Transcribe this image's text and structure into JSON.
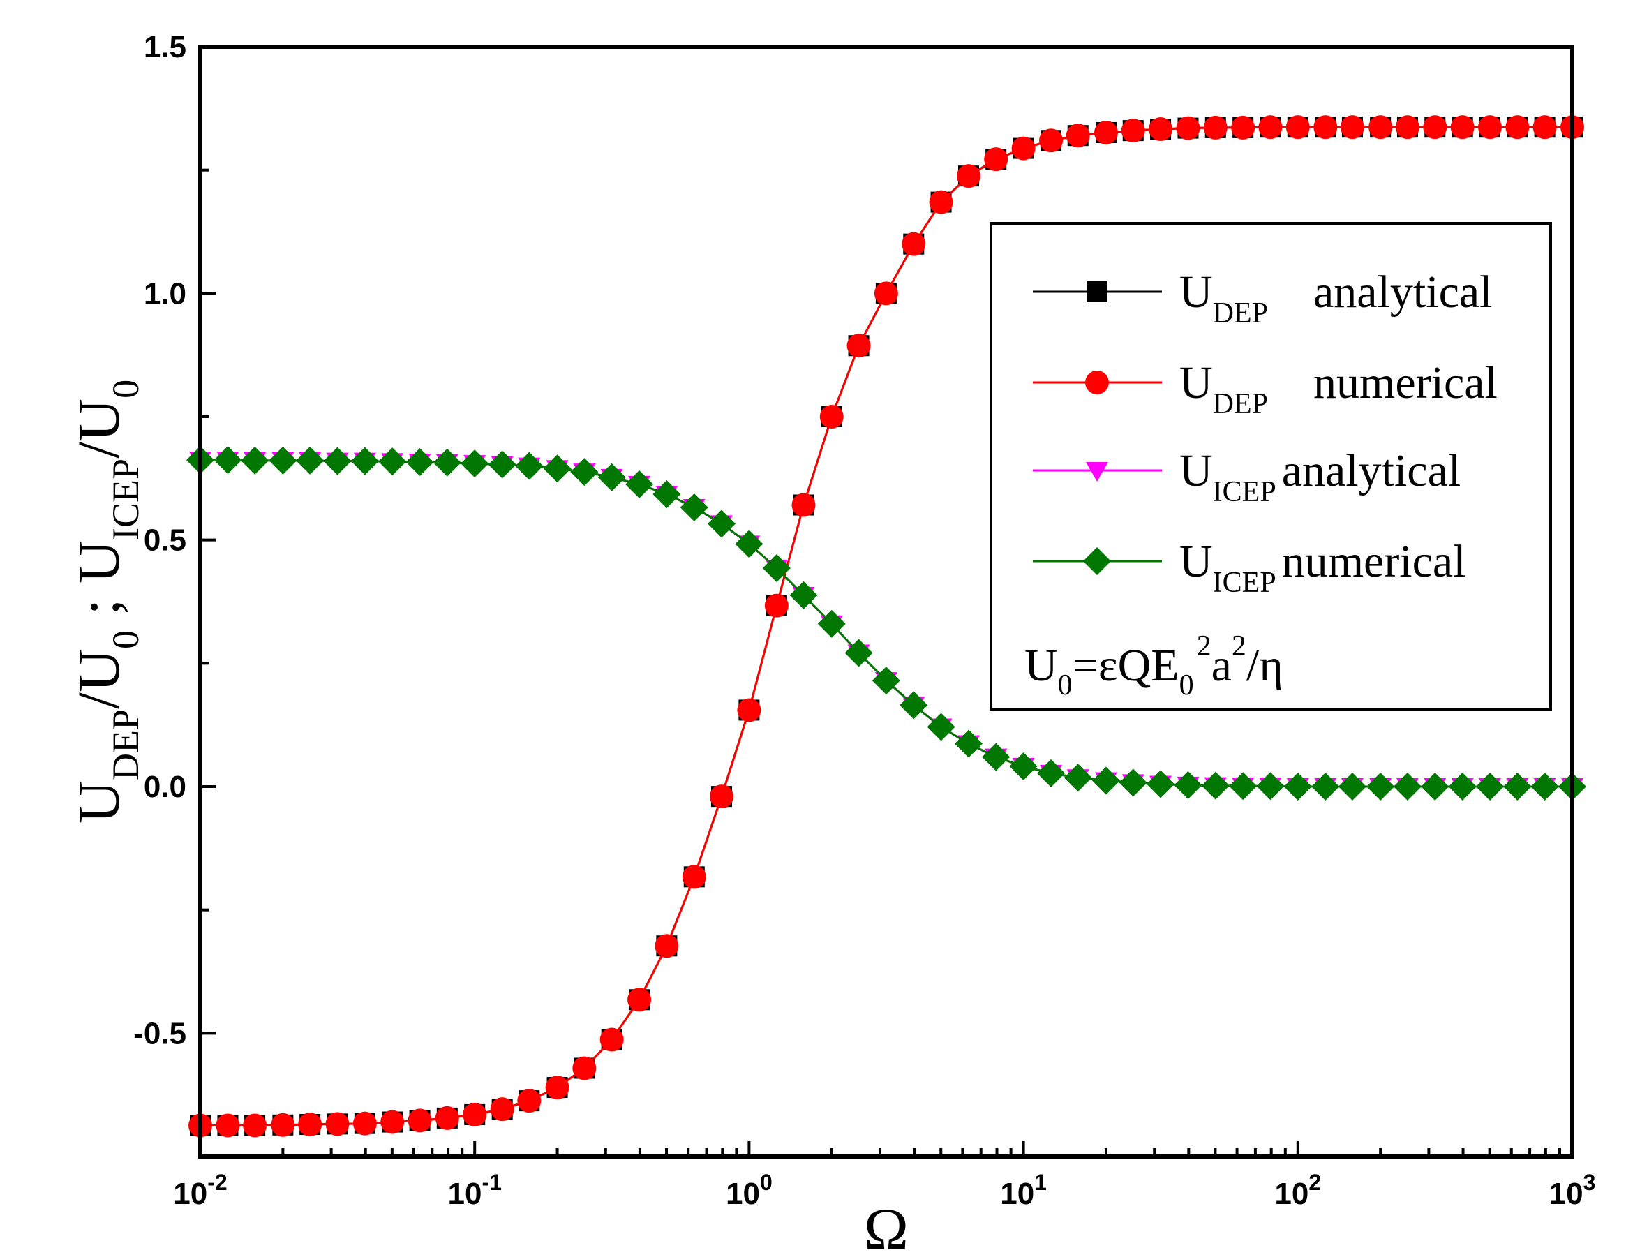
{
  "chart_data": {
    "type": "line",
    "title": "",
    "xlabel": "Ω",
    "ylabel": {
      "dep_main": "U",
      "dep_sub": "DEP",
      "dep_div": "/U",
      "dep_div_sub": "0",
      "sep": " ; ",
      "icep_main": "U",
      "icep_sub": "ICEP",
      "icep_div": "/U",
      "icep_div_sub": "0"
    },
    "xscale": "log",
    "xlim": [
      0.01,
      1000
    ],
    "ylim": [
      -0.75,
      1.5
    ],
    "x_ticks": [
      {
        "value": 0.01,
        "base": "10",
        "exp": "-2"
      },
      {
        "value": 0.1,
        "base": "10",
        "exp": "-1"
      },
      {
        "value": 1,
        "base": "10",
        "exp": "0"
      },
      {
        "value": 10,
        "base": "10",
        "exp": "1"
      },
      {
        "value": 100,
        "base": "10",
        "exp": "2"
      },
      {
        "value": 1000,
        "base": "10",
        "exp": "3"
      }
    ],
    "y_ticks": [
      {
        "value": -0.5,
        "label": "-0.5"
      },
      {
        "value": 0.0,
        "label": "0.0"
      },
      {
        "value": 0.5,
        "label": "0.5"
      },
      {
        "value": 1.0,
        "label": "1.0"
      },
      {
        "value": 1.5,
        "label": "1.5"
      }
    ],
    "x": [
      0.01,
      0.0126,
      0.0158,
      0.02,
      0.0251,
      0.0316,
      0.0398,
      0.0501,
      0.0631,
      0.0794,
      0.1,
      0.126,
      0.158,
      0.2,
      0.251,
      0.316,
      0.398,
      0.501,
      0.631,
      0.794,
      1.0,
      1.26,
      1.58,
      2.0,
      2.51,
      3.16,
      3.98,
      5.01,
      6.31,
      7.94,
      10.0,
      12.6,
      15.8,
      20.0,
      25.1,
      31.6,
      39.8,
      50.1,
      63.1,
      79.4,
      100,
      126,
      158,
      200,
      251,
      316,
      398,
      501,
      631,
      794,
      1000
    ],
    "series": [
      {
        "name": "U_DEP analytical",
        "color": "#000000",
        "marker": "square",
        "values": [
          -0.687,
          -0.687,
          -0.687,
          -0.686,
          -0.685,
          -0.684,
          -0.683,
          -0.68,
          -0.677,
          -0.672,
          -0.665,
          -0.654,
          -0.637,
          -0.61,
          -0.571,
          -0.513,
          -0.432,
          -0.323,
          -0.183,
          -0.02,
          0.155,
          0.367,
          0.571,
          0.75,
          0.894,
          1.0,
          1.1,
          1.185,
          1.238,
          1.272,
          1.294,
          1.31,
          1.32,
          1.326,
          1.33,
          1.333,
          1.335,
          1.336,
          1.336,
          1.337,
          1.337,
          1.337,
          1.337,
          1.337,
          1.337,
          1.337,
          1.337,
          1.337,
          1.337,
          1.337,
          1.337
        ]
      },
      {
        "name": "U_DEP numerical",
        "color": "#ff0000",
        "marker": "circle",
        "values": [
          -0.687,
          -0.687,
          -0.687,
          -0.686,
          -0.685,
          -0.684,
          -0.683,
          -0.68,
          -0.677,
          -0.672,
          -0.665,
          -0.654,
          -0.637,
          -0.61,
          -0.571,
          -0.513,
          -0.432,
          -0.323,
          -0.183,
          -0.02,
          0.155,
          0.367,
          0.571,
          0.75,
          0.894,
          1.0,
          1.1,
          1.185,
          1.238,
          1.272,
          1.294,
          1.31,
          1.32,
          1.326,
          1.33,
          1.333,
          1.335,
          1.336,
          1.336,
          1.337,
          1.337,
          1.337,
          1.337,
          1.337,
          1.337,
          1.337,
          1.337,
          1.337,
          1.337,
          1.337,
          1.337
        ]
      },
      {
        "name": "U_ICEP analytical",
        "color": "#ff00ff",
        "marker": "triangle-down",
        "values": [
          0.662,
          0.662,
          0.661,
          0.661,
          0.661,
          0.66,
          0.66,
          0.659,
          0.658,
          0.657,
          0.655,
          0.653,
          0.65,
          0.645,
          0.638,
          0.627,
          0.613,
          0.593,
          0.566,
          0.533,
          0.492,
          0.443,
          0.388,
          0.33,
          0.271,
          0.215,
          0.165,
          0.121,
          0.087,
          0.06,
          0.041,
          0.027,
          0.018,
          0.012,
          0.008,
          0.005,
          0.003,
          0.002,
          0.001,
          0.001,
          0.0,
          0.0,
          0.0,
          0.0,
          0.0,
          0.0,
          0.0,
          0.0,
          0.0,
          0.0,
          0.0
        ]
      },
      {
        "name": "U_ICEP numerical",
        "color": "#007700",
        "marker": "diamond",
        "values": [
          0.662,
          0.662,
          0.661,
          0.661,
          0.661,
          0.66,
          0.66,
          0.659,
          0.658,
          0.657,
          0.655,
          0.653,
          0.65,
          0.645,
          0.638,
          0.627,
          0.613,
          0.593,
          0.566,
          0.533,
          0.492,
          0.443,
          0.388,
          0.33,
          0.271,
          0.215,
          0.165,
          0.121,
          0.087,
          0.06,
          0.041,
          0.027,
          0.018,
          0.012,
          0.008,
          0.005,
          0.003,
          0.002,
          0.001,
          0.001,
          0.0,
          0.0,
          0.0,
          0.0,
          0.0,
          0.0,
          0.0,
          0.0,
          0.0,
          0.0,
          0.0
        ]
      }
    ],
    "legend": {
      "position": "right",
      "entries": [
        {
          "main": "U",
          "sub": "DEP",
          "text": "analytical"
        },
        {
          "main": "U",
          "sub": "DEP",
          "text": "numerical"
        },
        {
          "main": "U",
          "sub": "ICEP",
          "text": "analytical"
        },
        {
          "main": "U",
          "sub": "ICEP",
          "text": "numerical"
        }
      ],
      "formula": {
        "p1": "U",
        "p1_sub": "0",
        "p2": "=εQE",
        "p2_sub": "0",
        "p2_sup": "2",
        "p3": "a",
        "p3_sup": "2",
        "p4": "/η"
      }
    }
  }
}
